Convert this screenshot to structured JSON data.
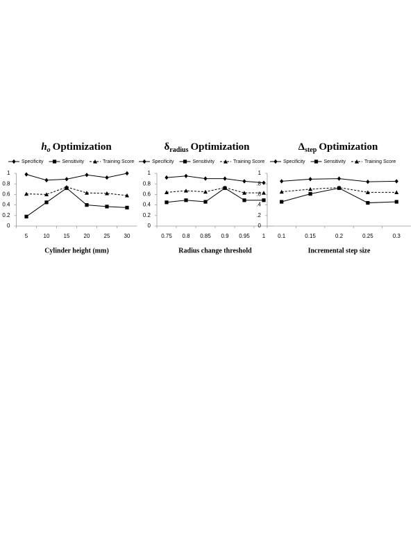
{
  "chart_data": [
    {
      "type": "line",
      "title": {
        "symbol": "h",
        "subscript": "o",
        "text": "Optimization"
      },
      "symbol_italic": true,
      "x_label": "Cylinder height (mm)",
      "categories": [
        "5",
        "10",
        "15",
        "20",
        "25",
        "30"
      ],
      "ylim": [
        0,
        1
      ],
      "yticks": [
        0,
        0.2,
        0.4,
        0.6,
        0.8,
        1
      ],
      "series": [
        {
          "name": "Specificity",
          "color": "#000000",
          "marker": "diamond",
          "dashed": false,
          "values": [
            0.98,
            0.87,
            0.89,
            0.97,
            0.92,
            1.0
          ]
        },
        {
          "name": "Sensitivity",
          "color": "#000000",
          "marker": "square",
          "dashed": false,
          "values": [
            0.18,
            0.45,
            0.72,
            0.4,
            0.37,
            0.35
          ]
        },
        {
          "name": "Training Score",
          "color": "#000000",
          "marker": "triangle",
          "dashed": true,
          "values": [
            0.61,
            0.6,
            0.74,
            0.63,
            0.62,
            0.58
          ]
        }
      ]
    },
    {
      "type": "line",
      "title": {
        "symbol": "δ",
        "subscript": "radius",
        "text": "Optimization"
      },
      "symbol_italic": false,
      "x_label": "Radius change threshold",
      "categories": [
        "0.75",
        "0.8",
        "0.85",
        "0.9",
        "0.95",
        "1"
      ],
      "ylim": [
        0,
        1
      ],
      "yticks": [
        0,
        0.2,
        0.4,
        0.6,
        0.8,
        1
      ],
      "series": [
        {
          "name": "Specificity",
          "color": "#000000",
          "marker": "diamond",
          "dashed": false,
          "values": [
            0.92,
            0.95,
            0.9,
            0.9,
            0.85,
            0.82
          ]
        },
        {
          "name": "Sensitivity",
          "color": "#000000",
          "marker": "square",
          "dashed": false,
          "values": [
            0.45,
            0.49,
            0.46,
            0.72,
            0.49,
            0.49
          ]
        },
        {
          "name": "Training Score",
          "color": "#000000",
          "marker": "triangle",
          "dashed": true,
          "values": [
            0.64,
            0.67,
            0.65,
            0.73,
            0.63,
            0.63
          ]
        }
      ]
    },
    {
      "type": "line",
      "title": {
        "symbol": "Δ",
        "subscript": "step",
        "text": "Optimization"
      },
      "symbol_italic": false,
      "x_label": "Incremental step size",
      "categories": [
        "0.1",
        "0.15",
        "0.2",
        "0.25",
        "0.3"
      ],
      "ylim": [
        0,
        1
      ],
      "yticks": [
        0,
        {
          "value": 0.2,
          "label": ".2"
        },
        {
          "value": 0.4,
          "label": ".4"
        },
        {
          "value": 0.6,
          "label": ".6"
        },
        {
          "value": 0.8,
          "label": ".8"
        },
        1
      ],
      "series": [
        {
          "name": "Specificity",
          "color": "#000000",
          "marker": "diamond",
          "dashed": false,
          "values": [
            0.85,
            0.89,
            0.9,
            0.84,
            0.85
          ]
        },
        {
          "name": "Sensitivity",
          "color": "#000000",
          "marker": "square",
          "dashed": false,
          "values": [
            0.46,
            0.61,
            0.72,
            0.44,
            0.46
          ]
        },
        {
          "name": "Training Score",
          "color": "#000000",
          "marker": "triangle",
          "dashed": true,
          "values": [
            0.65,
            0.7,
            0.73,
            0.64,
            0.64
          ]
        }
      ]
    }
  ]
}
